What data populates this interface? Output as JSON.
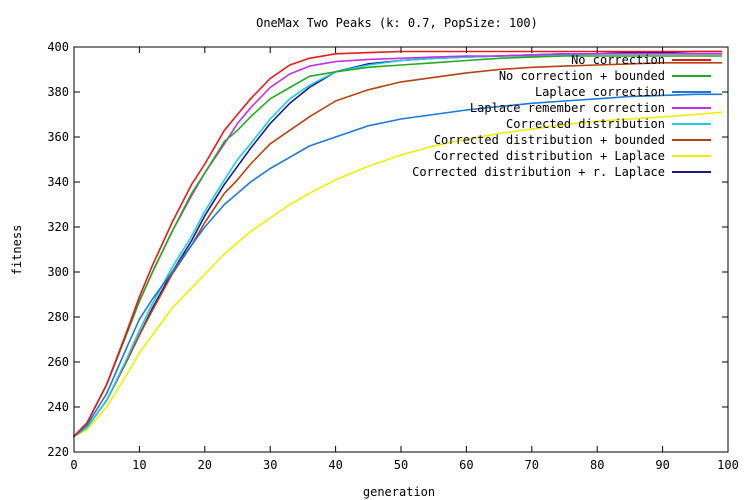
{
  "chart_data": {
    "type": "line",
    "title": "OneMax Two Peaks (k: 0.7, PopSize: 100)",
    "xlabel": "generation",
    "ylabel": "fitness",
    "xlim": [
      0,
      100
    ],
    "ylim": [
      220,
      400
    ],
    "xticks": [
      0,
      10,
      20,
      30,
      40,
      50,
      60,
      70,
      80,
      90,
      100
    ],
    "yticks": [
      220,
      240,
      260,
      280,
      300,
      320,
      340,
      360,
      380,
      400
    ],
    "grid": false,
    "legend_position": "top-right",
    "x": [
      0,
      2,
      5,
      8,
      10,
      12,
      15,
      18,
      20,
      23,
      25,
      27,
      30,
      33,
      36,
      40,
      45,
      50,
      55,
      60,
      65,
      70,
      75,
      80,
      85,
      90,
      95,
      99
    ],
    "series": [
      {
        "name": "No correction",
        "color": "#e41a1c",
        "values": [
          227,
          233,
          250,
          273,
          289,
          303,
          322,
          339,
          348,
          363,
          370,
          377,
          386,
          392,
          395,
          397,
          397.5,
          398,
          398,
          398,
          398,
          398,
          398,
          398,
          398,
          398,
          398,
          398
        ]
      },
      {
        "name": "No correction + bounded",
        "color": "#22aa22",
        "values": [
          227,
          233,
          250,
          272,
          287,
          300,
          318,
          335,
          344,
          358,
          363,
          369,
          377,
          382,
          387,
          389,
          391,
          392,
          393,
          394,
          395,
          395.5,
          396,
          396,
          396,
          396,
          396,
          396
        ]
      },
      {
        "name": "Laplace correction",
        "color": "#1e78d8",
        "values": [
          227,
          232,
          246,
          266,
          279,
          288,
          300,
          312,
          320,
          330,
          335,
          340,
          346,
          351,
          356,
          360,
          365,
          368,
          370,
          372,
          373.5,
          375,
          376,
          377,
          378,
          378.5,
          379,
          379
        ]
      },
      {
        "name": "Laplace remember correction",
        "color": "#c030e8",
        "values": [
          227,
          233,
          250,
          272,
          287,
          300,
          318,
          334,
          344,
          357,
          366,
          373,
          382,
          388,
          391.5,
          393.5,
          394.5,
          395,
          395.5,
          396,
          396,
          396.5,
          397,
          397,
          397,
          397,
          397,
          397
        ]
      },
      {
        "name": "Corrected distribution",
        "color": "#22ccdd",
        "values": [
          227,
          231,
          243,
          261,
          274,
          286,
          302,
          316,
          327,
          341,
          350,
          357,
          368,
          377,
          383,
          389,
          392,
          394,
          395,
          395.5,
          396,
          396,
          396.5,
          397,
          397,
          397,
          397,
          397
        ]
      },
      {
        "name": "Corrected distribution + bounded",
        "color": "#b8420f",
        "values": [
          227,
          231,
          243,
          260,
          272,
          283,
          299,
          312,
          322,
          335,
          341,
          348,
          357,
          363,
          369,
          376,
          381,
          384.5,
          386.5,
          388.5,
          390,
          391,
          391.5,
          392,
          392.5,
          393,
          393,
          393
        ]
      },
      {
        "name": "Corrected distribution + Laplace",
        "color": "#eeee00",
        "values": [
          227,
          230,
          240,
          254,
          264,
          272,
          284,
          293,
          299,
          308,
          313,
          318,
          324,
          330,
          335,
          341,
          347,
          352,
          356,
          359,
          361.5,
          363.5,
          365.5,
          367,
          368,
          369,
          370,
          371
        ]
      },
      {
        "name": "Corrected distribution + r. Laplace",
        "color": "#1a1a8c",
        "values": [
          227,
          231,
          243,
          260,
          272,
          284,
          300,
          314,
          325,
          339,
          347,
          355,
          366,
          375,
          382,
          389,
          392.5,
          394,
          395,
          395.5,
          396,
          396.5,
          397,
          397,
          397.5,
          397.5,
          398,
          398
        ]
      }
    ]
  }
}
